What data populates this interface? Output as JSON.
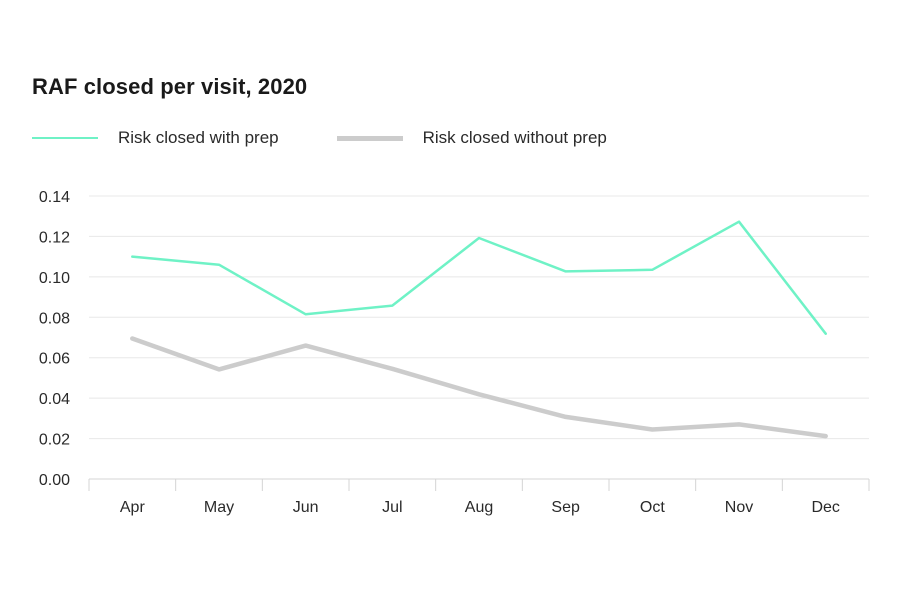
{
  "chart_data": {
    "type": "line",
    "title": "RAF closed per visit, 2020",
    "xlabel": "",
    "ylabel": "",
    "categories": [
      "Apr",
      "May",
      "Jun",
      "Jul",
      "Aug",
      "Sep",
      "Oct",
      "Nov",
      "Dec"
    ],
    "ylim": [
      0,
      0.14
    ],
    "yticks": [
      "0.00",
      "0.02",
      "0.04",
      "0.06",
      "0.08",
      "0.10",
      "0.12",
      "0.14"
    ],
    "grid": true,
    "legend_position": "top-left",
    "series": [
      {
        "name": "Risk closed with prep",
        "color": "#6ff2c6",
        "values": [
          0.11,
          0.106,
          0.0815,
          0.0858,
          0.1192,
          0.1027,
          0.1035,
          0.1273,
          0.0719
        ]
      },
      {
        "name": "Risk closed without prep",
        "color": "#cccccc",
        "values": [
          0.0695,
          0.0542,
          0.066,
          0.0545,
          0.0419,
          0.0307,
          0.0245,
          0.027,
          0.0212
        ]
      }
    ]
  },
  "colors": {
    "grid": "#e8e8e8",
    "axis": "#d4d4d4",
    "text": "#2a2a2a"
  }
}
